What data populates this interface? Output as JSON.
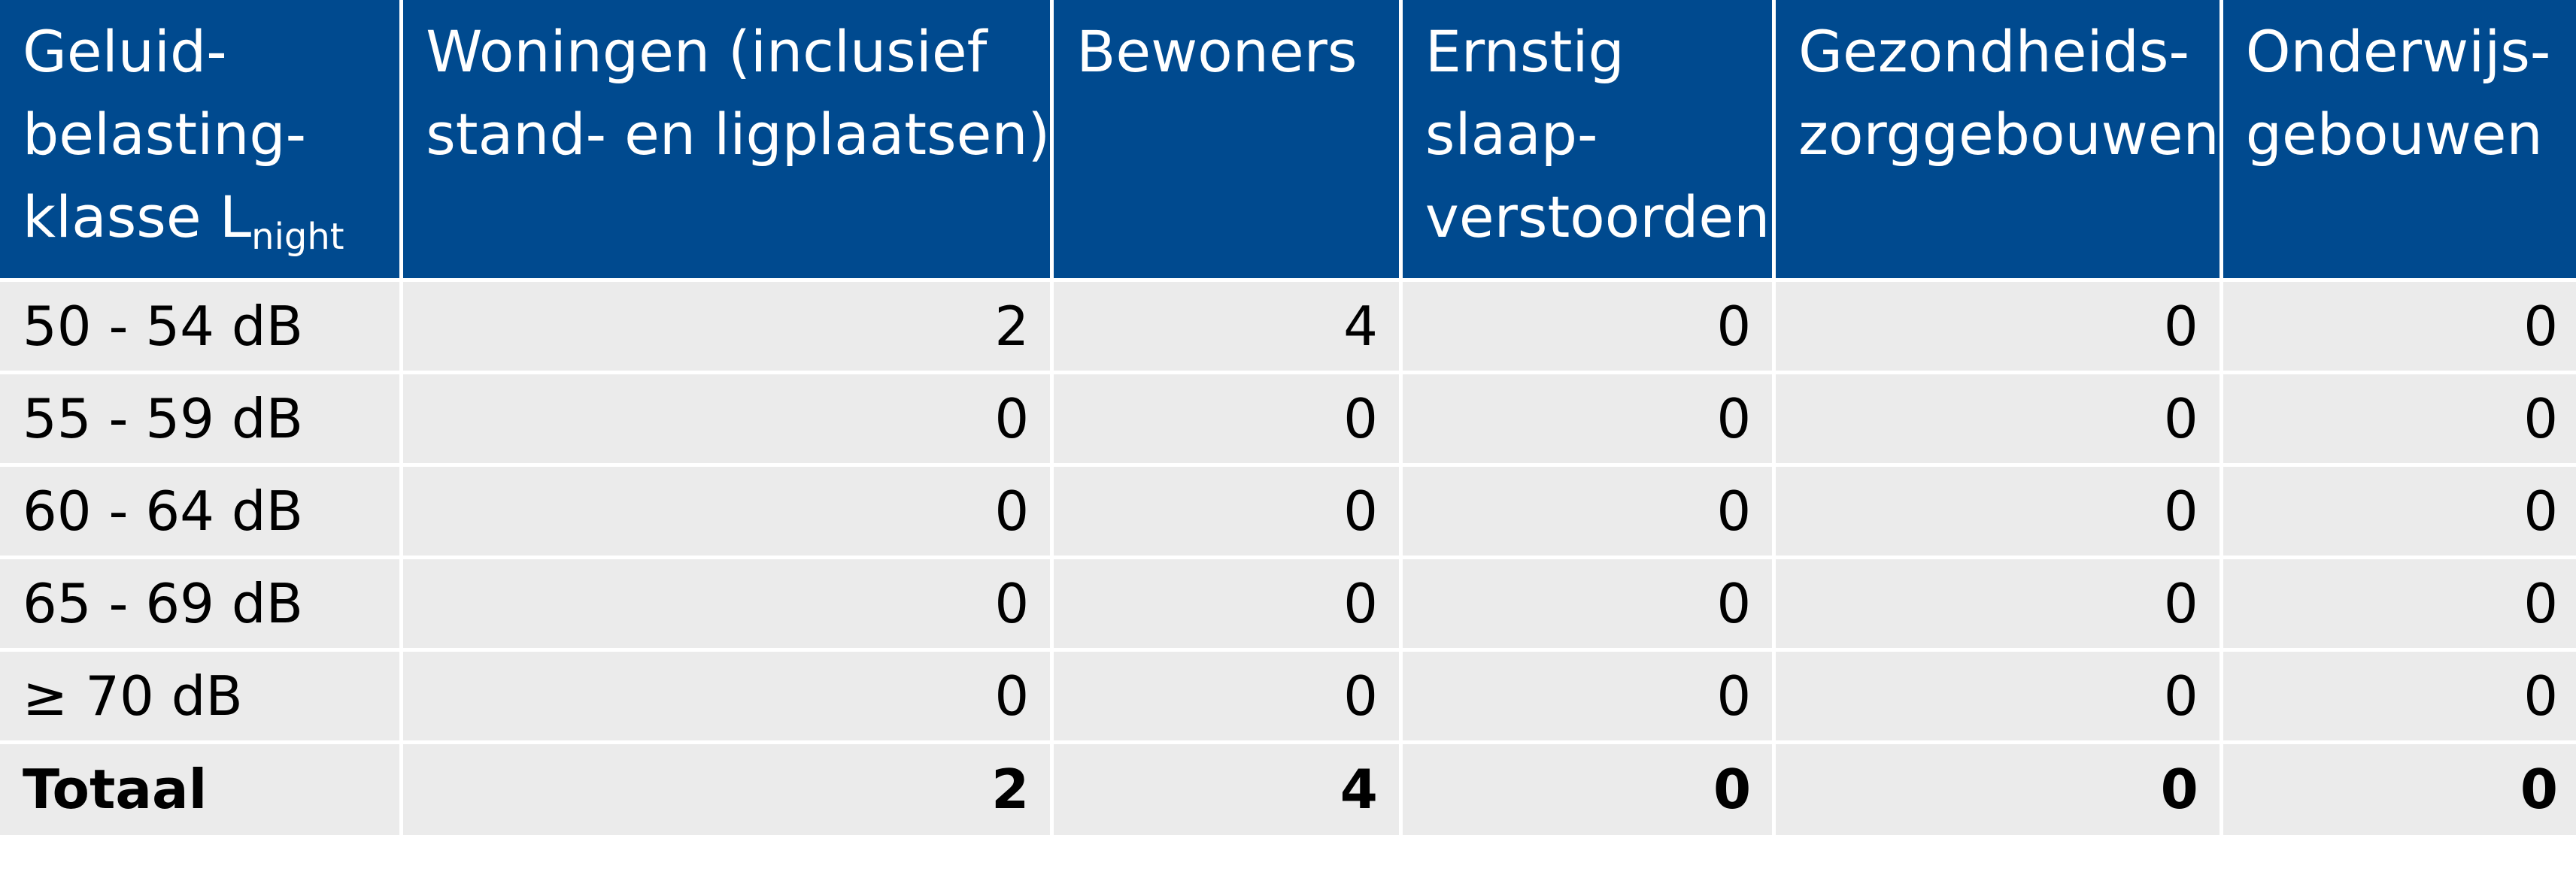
{
  "table": {
    "headers": [
      [
        "Geluid-",
        "belasting-",
        "klasse L"
      ],
      [
        "Woningen (inclusief",
        "stand- en ligplaatsen)"
      ],
      [
        "Bewoners"
      ],
      [
        "Ernstig",
        "slaap-",
        "verstoorden"
      ],
      [
        "Gezondheids-",
        "zorggebouwen"
      ],
      [
        "Onderwijs-",
        "gebouwen"
      ]
    ],
    "header_subscript": "night",
    "rows": [
      {
        "label": "50 - 54 dB",
        "values": [
          "2",
          "4",
          "0",
          "0",
          "0"
        ]
      },
      {
        "label": "55 - 59 dB",
        "values": [
          "0",
          "0",
          "0",
          "0",
          "0"
        ]
      },
      {
        "label": "60 - 64 dB",
        "values": [
          "0",
          "0",
          "0",
          "0",
          "0"
        ]
      },
      {
        "label": "65 - 69 dB",
        "values": [
          "0",
          "0",
          "0",
          "0",
          "0"
        ]
      },
      {
        "label": "≥ 70 dB",
        "values": [
          "0",
          "0",
          "0",
          "0",
          "0"
        ]
      },
      {
        "label": "Totaal",
        "values": [
          "2",
          "4",
          "0",
          "0",
          "0"
        ]
      }
    ]
  }
}
